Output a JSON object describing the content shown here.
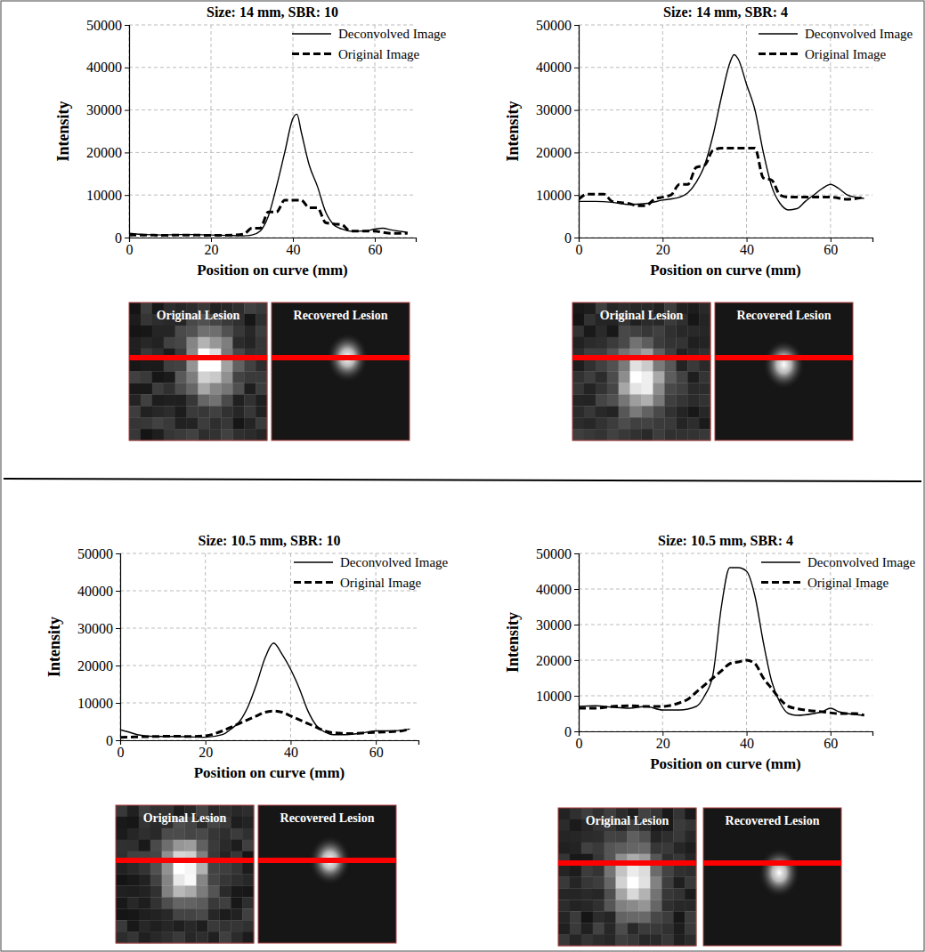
{
  "chart_data": [
    {
      "type": "line",
      "title": "Size: 14 mm, SBR: 10",
      "x_label": "Position on curve (mm)",
      "y_label": "Intensity",
      "xlim": [
        0,
        70
      ],
      "xticks": [
        0,
        20,
        40,
        60
      ],
      "ylim": [
        0,
        50000
      ],
      "yticks": [
        0,
        10000,
        20000,
        30000,
        40000,
        50000
      ],
      "grid": true,
      "legend": "top-right",
      "series": [
        {
          "name": "Deconvolved Image",
          "color": "#000000",
          "line_style": "solid",
          "x": [
            0,
            4,
            8,
            12,
            16,
            20,
            24,
            28,
            30,
            32,
            34,
            36,
            38,
            40,
            41,
            42,
            44,
            46,
            48,
            50,
            52,
            54,
            56,
            58,
            60,
            62,
            64,
            66,
            68
          ],
          "values": [
            1000,
            700,
            600,
            700,
            700,
            600,
            500,
            400,
            600,
            1500,
            5000,
            12000,
            20000,
            28000,
            29000,
            25000,
            17000,
            12000,
            6000,
            3000,
            2000,
            1500,
            1500,
            1600,
            2000,
            2200,
            1800,
            1500,
            1200
          ]
        },
        {
          "name": "Original Image",
          "color": "#000000",
          "line_style": "dashed",
          "x": [
            0,
            4,
            8,
            12,
            16,
            20,
            26,
            28,
            30,
            32,
            34,
            36,
            38,
            40,
            42,
            44,
            46,
            48,
            50,
            52,
            54,
            56,
            60,
            62,
            64,
            66,
            68
          ],
          "values": [
            600,
            600,
            500,
            600,
            600,
            500,
            600,
            800,
            2200,
            2200,
            6000,
            6000,
            8800,
            8800,
            8800,
            7000,
            7000,
            3500,
            3200,
            3000,
            1500,
            1500,
            1500,
            1200,
            1000,
            1000,
            1000
          ]
        }
      ],
      "images": [
        "Original Lesion",
        "Recovered Lesion"
      ]
    },
    {
      "type": "line",
      "title": "Size: 14 mm, SBR: 4",
      "x_label": "Position on curve (mm)",
      "y_label": "Intensity",
      "xlim": [
        0,
        70
      ],
      "xticks": [
        0,
        20,
        40,
        60
      ],
      "ylim": [
        0,
        50000
      ],
      "yticks": [
        0,
        10000,
        20000,
        30000,
        40000,
        50000
      ],
      "grid": true,
      "legend": "top-right",
      "series": [
        {
          "name": "Deconvolved Image",
          "color": "#000000",
          "line_style": "solid",
          "x": [
            0,
            4,
            8,
            12,
            16,
            20,
            24,
            26,
            28,
            30,
            32,
            34,
            36,
            37,
            38,
            40,
            42,
            44,
            46,
            48,
            50,
            52,
            54,
            56,
            58,
            60,
            62,
            64,
            66,
            68
          ],
          "values": [
            8500,
            8500,
            8300,
            7800,
            8000,
            8800,
            9500,
            10500,
            13000,
            17000,
            24000,
            33000,
            41000,
            43000,
            42000,
            36000,
            30000,
            20000,
            12000,
            8000,
            6500,
            6800,
            8500,
            10000,
            11500,
            12500,
            11500,
            10000,
            9500,
            9200
          ]
        },
        {
          "name": "Original Image",
          "color": "#000000",
          "line_style": "dashed",
          "x": [
            0,
            2,
            6,
            8,
            12,
            14,
            16,
            18,
            20,
            22,
            24,
            26,
            28,
            30,
            32,
            34,
            36,
            38,
            40,
            42,
            44,
            46,
            48,
            50,
            54,
            60,
            64,
            68
          ],
          "values": [
            9000,
            10200,
            10200,
            8500,
            8000,
            7500,
            7500,
            9000,
            9500,
            10000,
            12500,
            12500,
            16500,
            17000,
            20500,
            21000,
            21000,
            21000,
            21000,
            21000,
            14000,
            13500,
            10000,
            9500,
            9500,
            9500,
            9000,
            9500
          ]
        }
      ],
      "images": [
        "Original Lesion",
        "Recovered Lesion"
      ]
    },
    {
      "type": "line",
      "title": "Size: 10.5 mm, SBR: 10",
      "x_label": "Position on curve (mm)",
      "y_label": "Intensity",
      "xlim": [
        0,
        70
      ],
      "xticks": [
        0,
        20,
        40,
        60
      ],
      "ylim": [
        0,
        50000
      ],
      "yticks": [
        0,
        10000,
        20000,
        30000,
        40000,
        50000
      ],
      "grid": true,
      "legend": "top-right",
      "series": [
        {
          "name": "Deconvolved Image",
          "color": "#000000",
          "line_style": "solid",
          "x": [
            0,
            2,
            4,
            8,
            12,
            16,
            20,
            24,
            26,
            28,
            30,
            32,
            34,
            36,
            38,
            40,
            42,
            44,
            46,
            48,
            50,
            52,
            56,
            60,
            64,
            68
          ],
          "values": [
            2800,
            2200,
            1500,
            1000,
            1000,
            900,
            800,
            1500,
            3000,
            5000,
            9000,
            15000,
            22000,
            26000,
            23000,
            19000,
            14000,
            8000,
            4000,
            2200,
            1500,
            1500,
            1800,
            2500,
            2500,
            3000
          ]
        },
        {
          "name": "Original Image",
          "color": "#000000",
          "line_style": "dashed",
          "x": [
            0,
            4,
            8,
            12,
            16,
            20,
            24,
            26,
            28,
            30,
            32,
            34,
            36,
            38,
            40,
            42,
            44,
            46,
            48,
            50,
            54,
            58,
            62,
            66,
            68
          ],
          "values": [
            800,
            900,
            1000,
            1100,
            1000,
            1200,
            2500,
            3500,
            4500,
            5500,
            6500,
            7500,
            7800,
            7500,
            6500,
            5500,
            4500,
            3500,
            2500,
            2000,
            1800,
            2000,
            2200,
            2500,
            3000
          ]
        }
      ],
      "images": [
        "Original Lesion",
        "Recovered Lesion"
      ]
    },
    {
      "type": "line",
      "title": "Size: 10.5 mm, SBR: 4",
      "x_label": "Position on curve (mm)",
      "y_label": "Intensity",
      "xlim": [
        0,
        70
      ],
      "xticks": [
        0,
        20,
        40,
        60
      ],
      "ylim": [
        0,
        50000
      ],
      "yticks": [
        0,
        10000,
        20000,
        30000,
        40000,
        50000
      ],
      "grid": true,
      "legend": "top-right",
      "series": [
        {
          "name": "Deconvolved Image",
          "color": "#000000",
          "line_style": "solid",
          "x": [
            0,
            4,
            8,
            12,
            16,
            20,
            24,
            28,
            30,
            32,
            34,
            36,
            38,
            40,
            42,
            44,
            46,
            48,
            50,
            52,
            56,
            58,
            60,
            62,
            64,
            68
          ],
          "values": [
            7000,
            7200,
            6800,
            6500,
            7000,
            6000,
            6000,
            7000,
            10000,
            16000,
            35000,
            46000,
            46000,
            45000,
            38000,
            25000,
            14000,
            8000,
            5000,
            4500,
            5000,
            5500,
            6500,
            5500,
            5000,
            4500
          ]
        },
        {
          "name": "Original Image",
          "color": "#000000",
          "line_style": "dashed",
          "x": [
            0,
            4,
            8,
            12,
            16,
            20,
            24,
            26,
            28,
            30,
            32,
            34,
            36,
            38,
            40,
            42,
            44,
            46,
            48,
            50,
            54,
            58,
            62,
            66,
            68
          ],
          "values": [
            6500,
            6500,
            7000,
            7200,
            7000,
            7000,
            8000,
            9000,
            11000,
            13000,
            15000,
            17000,
            19000,
            19500,
            20000,
            19000,
            15000,
            12000,
            9000,
            7000,
            6000,
            5500,
            5000,
            5000,
            4500
          ]
        }
      ],
      "images": [
        "Original Lesion",
        "Recovered Lesion"
      ]
    }
  ]
}
